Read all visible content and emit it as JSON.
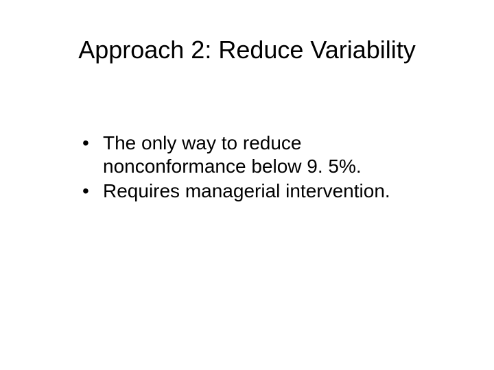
{
  "slide": {
    "title": "Approach 2: Reduce Variability",
    "bullets": [
      "The only way to reduce nonconformance below 9. 5%.",
      "Requires managerial intervention."
    ]
  },
  "style": {
    "background_color": "#ffffff",
    "text_color": "#000000",
    "title_fontsize": 36,
    "body_fontsize": 28,
    "font_family": "Arial"
  }
}
